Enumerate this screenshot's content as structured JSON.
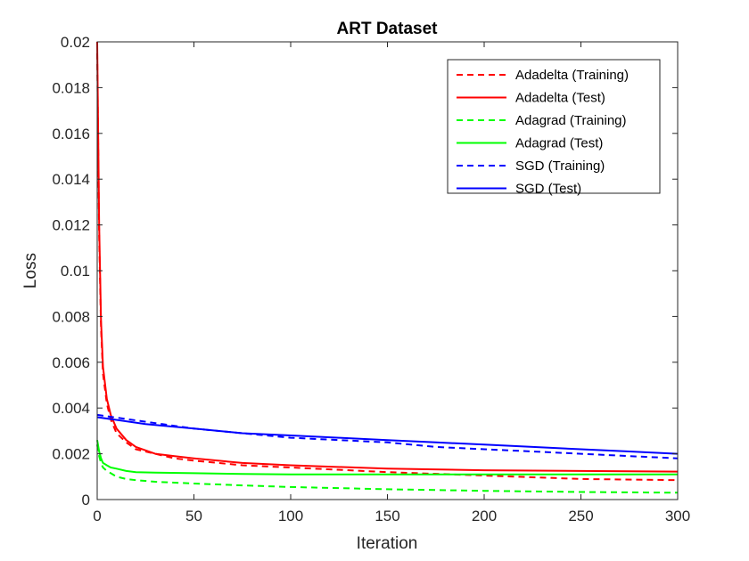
{
  "chart_data": {
    "type": "line",
    "title": "ART Dataset",
    "xlabel": "Iteration",
    "ylabel": "Loss",
    "xlim": [
      0,
      300
    ],
    "ylim": [
      0,
      0.02
    ],
    "xticks": [
      0,
      50,
      100,
      150,
      200,
      250,
      300
    ],
    "xtick_labels": [
      "0",
      "50",
      "100",
      "150",
      "200",
      "250",
      "300"
    ],
    "yticks": [
      0,
      0.002,
      0.004,
      0.006,
      0.008,
      0.01,
      0.012,
      0.014,
      0.016,
      0.018,
      0.02
    ],
    "ytick_labels": [
      "0",
      "0.002",
      "0.004",
      "0.006",
      "0.008",
      "0.01",
      "0.012",
      "0.014",
      "0.016",
      "0.018",
      "0.02"
    ],
    "grid": false,
    "legend_position": "top-right",
    "series": [
      {
        "name": "Adadelta (Training)",
        "color": "#ff0000",
        "style": "dashed",
        "x": [
          0,
          1,
          2,
          3,
          5,
          7,
          10,
          15,
          20,
          30,
          40,
          50,
          75,
          100,
          150,
          200,
          250,
          300
        ],
        "y": [
          0.0195,
          0.0115,
          0.0075,
          0.0055,
          0.0042,
          0.0035,
          0.0029,
          0.0025,
          0.0022,
          0.002,
          0.0018,
          0.0017,
          0.0015,
          0.0014,
          0.0012,
          0.00105,
          0.0009,
          0.00085
        ]
      },
      {
        "name": "Adadelta (Test)",
        "color": "#ff0000",
        "style": "solid",
        "x": [
          0,
          1,
          2,
          3,
          5,
          7,
          10,
          15,
          20,
          30,
          40,
          50,
          75,
          100,
          150,
          200,
          250,
          300
        ],
        "y": [
          0.02,
          0.012,
          0.0078,
          0.0058,
          0.0044,
          0.0037,
          0.0031,
          0.0026,
          0.0023,
          0.002,
          0.0019,
          0.0018,
          0.0016,
          0.0015,
          0.00135,
          0.00128,
          0.00125,
          0.00122
        ]
      },
      {
        "name": "Adagrad (Training)",
        "color": "#00ff00",
        "style": "dashed",
        "x": [
          0,
          1,
          2,
          3,
          5,
          7,
          10,
          15,
          20,
          30,
          50,
          75,
          100,
          150,
          200,
          250,
          300
        ],
        "y": [
          0.0024,
          0.0019,
          0.0016,
          0.0014,
          0.00125,
          0.00115,
          0.001,
          0.0009,
          0.00085,
          0.00078,
          0.0007,
          0.00062,
          0.00055,
          0.00045,
          0.00038,
          0.00033,
          0.0003
        ]
      },
      {
        "name": "Adagrad (Test)",
        "color": "#00ff00",
        "style": "solid",
        "x": [
          0,
          1,
          2,
          3,
          5,
          7,
          10,
          15,
          20,
          30,
          50,
          75,
          100,
          150,
          200,
          250,
          300
        ],
        "y": [
          0.0026,
          0.0021,
          0.0018,
          0.0016,
          0.0015,
          0.0014,
          0.00135,
          0.00125,
          0.0012,
          0.00118,
          0.00115,
          0.00112,
          0.0011,
          0.0011,
          0.0011,
          0.0011,
          0.0011
        ]
      },
      {
        "name": "SGD (Training)",
        "color": "#0000ff",
        "style": "dashed",
        "x": [
          0,
          25,
          50,
          75,
          100,
          125,
          150,
          175,
          200,
          225,
          250,
          275,
          300
        ],
        "y": [
          0.0037,
          0.0034,
          0.0031,
          0.0029,
          0.0027,
          0.0026,
          0.0025,
          0.0023,
          0.0022,
          0.0021,
          0.002,
          0.0019,
          0.0018
        ]
      },
      {
        "name": "SGD (Test)",
        "color": "#0000ff",
        "style": "solid",
        "x": [
          0,
          25,
          50,
          75,
          100,
          125,
          150,
          175,
          200,
          225,
          250,
          275,
          300
        ],
        "y": [
          0.0036,
          0.0033,
          0.0031,
          0.0029,
          0.0028,
          0.0027,
          0.0026,
          0.0025,
          0.0024,
          0.0023,
          0.0022,
          0.0021,
          0.002
        ]
      }
    ]
  }
}
